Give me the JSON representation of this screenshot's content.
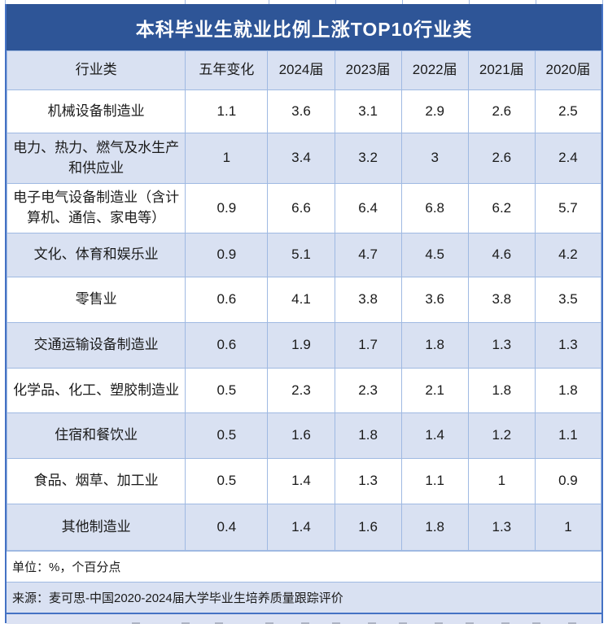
{
  "chart_data": {
    "type": "table",
    "title": "本科毕业生就业比例上涨TOP10行业类",
    "columns": [
      "行业类",
      "五年变化",
      "2024届",
      "2023届",
      "2022届",
      "2021届",
      "2020届"
    ],
    "rows": [
      [
        "机械设备制造业",
        "1.1",
        "3.6",
        "3.1",
        "2.9",
        "2.6",
        "2.5"
      ],
      [
        "电力、热力、燃气及水生产和供应业",
        "1",
        "3.4",
        "3.2",
        "3",
        "2.6",
        "2.4"
      ],
      [
        "电子电气设备制造业（含计算机、通信、家电等）",
        "0.9",
        "6.6",
        "6.4",
        "6.8",
        "6.2",
        "5.7"
      ],
      [
        "文化、体育和娱乐业",
        "0.9",
        "5.1",
        "4.7",
        "4.5",
        "4.6",
        "4.2"
      ],
      [
        "零售业",
        "0.6",
        "4.1",
        "3.8",
        "3.6",
        "3.8",
        "3.5"
      ],
      [
        "交通运输设备制造业",
        "0.6",
        "1.9",
        "1.7",
        "1.8",
        "1.3",
        "1.3"
      ],
      [
        "化学品、化工、塑胶制造业",
        "0.5",
        "2.3",
        "2.3",
        "2.1",
        "1.8",
        "1.8"
      ],
      [
        "住宿和餐饮业",
        "0.5",
        "1.6",
        "1.8",
        "1.4",
        "1.2",
        "1.1"
      ],
      [
        "食品、烟草、加工业",
        "0.5",
        "1.4",
        "1.3",
        "1.1",
        "1",
        "0.9"
      ],
      [
        "其他制造业",
        "0.4",
        "1.4",
        "1.6",
        "1.8",
        "1.3",
        "1"
      ]
    ],
    "unit_note": "单位：%，个百分点",
    "source_note": "来源：麦可思-中国2020-2024届大学毕业生培养质量跟踪评价",
    "layout_hints": "banded rows, light-blue header band, navy merged title bar, grid on"
  },
  "colors": {
    "title_bg": "#2E5597",
    "title_text": "#FFFFFF",
    "band_bg": "#D9E1F2",
    "grid": "#9FB9E2",
    "outer_border": "#4472C4",
    "text": "#1A1A1A"
  }
}
